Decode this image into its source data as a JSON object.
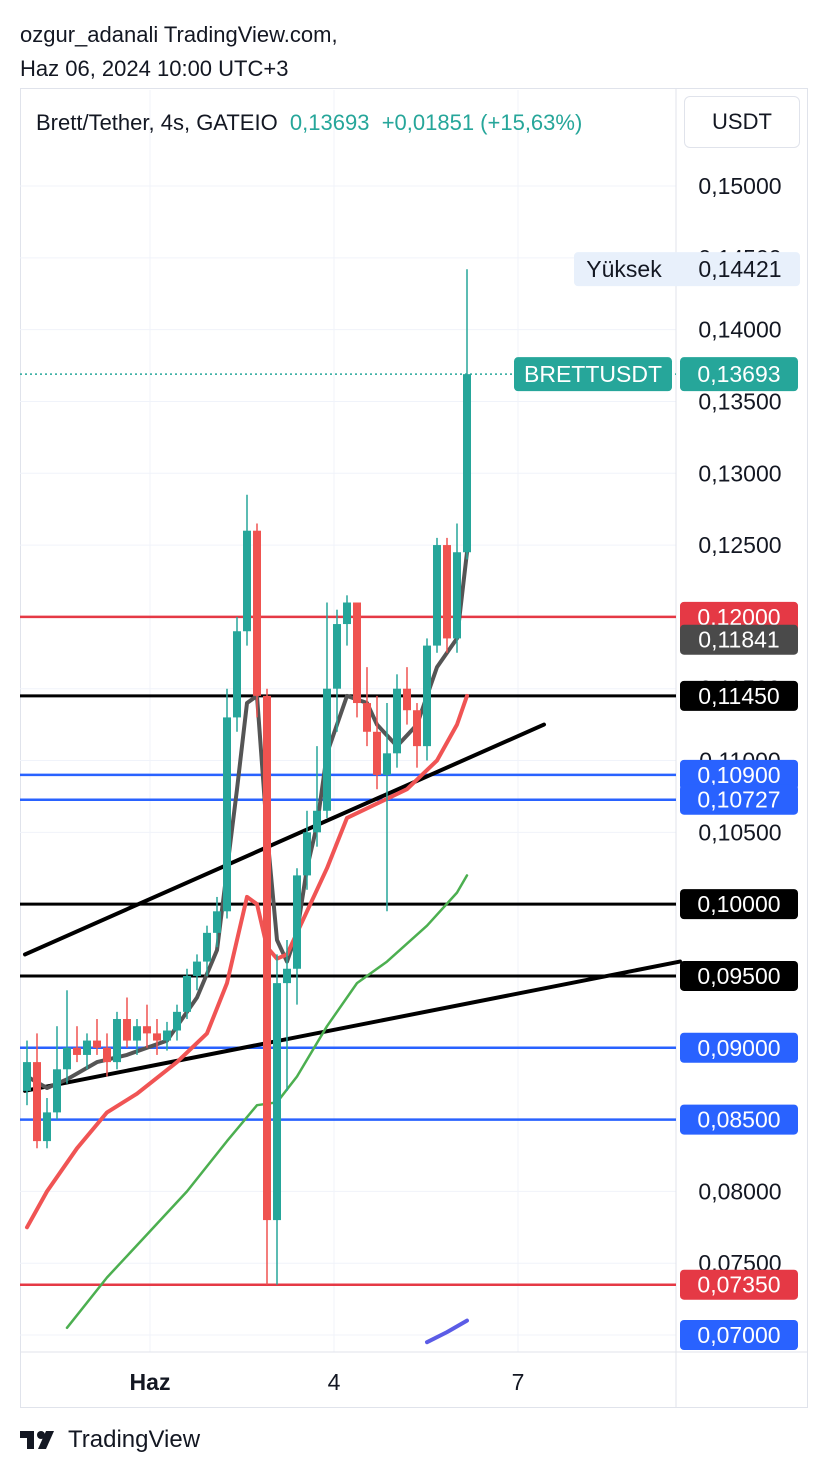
{
  "header": {
    "author": "ozgur_adanali TradingView.com,",
    "datetime": "Haz 06, 2024 10:00 UTC+3"
  },
  "symbol": {
    "name": "Brett/Tether, 4s, GATEIO",
    "price": "0,13693",
    "change": "+0,01851 (+15,63%)"
  },
  "currency": "USDT",
  "footer": {
    "brand": "TradingView"
  },
  "colors": {
    "up": "#26a69a",
    "down": "#ef5350",
    "red_line": "#e53945",
    "blue_line": "#2962ff",
    "black_line": "#000000",
    "ma_dark": "#555555",
    "ma_red": "#f05454",
    "ma_green": "#4caf50",
    "ma_purple": "#5b5ce6",
    "price_label": "#26a69a"
  },
  "chart_data": {
    "type": "candlestick",
    "symbol": "BRETTUSDT",
    "ylim": [
      0.0675,
      0.1545
    ],
    "price_axis_ticks": [
      "0,15000",
      "0,14500",
      "0,14000",
      "0,13500",
      "0,13000",
      "0,12500",
      "0,11500",
      "0,11000",
      "0,10500",
      "0,08000",
      "0,07500"
    ],
    "time_axis_ticks": [
      "Haz",
      "4",
      "7"
    ],
    "last_price_label": "0,13693",
    "high_label": {
      "text": "Yüksek",
      "value": "0,14421"
    },
    "horizontal_levels": [
      {
        "value": 0.12,
        "label": "0,12000",
        "color": "red"
      },
      {
        "value": 0.11841,
        "label": "0,11841",
        "color": "gray",
        "line": false
      },
      {
        "value": 0.1145,
        "label": "0,11450",
        "color": "black"
      },
      {
        "value": 0.109,
        "label": "0,10900",
        "color": "blue"
      },
      {
        "value": 0.10727,
        "label": "0,10727",
        "color": "blue"
      },
      {
        "value": 0.1,
        "label": "0,10000",
        "color": "black"
      },
      {
        "value": 0.095,
        "label": "0,09500",
        "color": "black"
      },
      {
        "value": 0.09,
        "label": "0,09000",
        "color": "blue"
      },
      {
        "value": 0.085,
        "label": "0,08500",
        "color": "blue"
      },
      {
        "value": 0.0735,
        "label": "0,07350",
        "color": "red"
      },
      {
        "value": 0.07,
        "label": "0,07000",
        "color": "blue",
        "line": false
      }
    ],
    "candles": [
      [
        0.087,
        0.0905,
        0.086,
        0.089
      ],
      [
        0.089,
        0.091,
        0.083,
        0.0835
      ],
      [
        0.0835,
        0.0865,
        0.083,
        0.0855
      ],
      [
        0.0855,
        0.0915,
        0.085,
        0.0885
      ],
      [
        0.0885,
        0.094,
        0.0875,
        0.09
      ],
      [
        0.09,
        0.0915,
        0.089,
        0.0895
      ],
      [
        0.0895,
        0.091,
        0.0885,
        0.0905
      ],
      [
        0.0905,
        0.092,
        0.0895,
        0.09
      ],
      [
        0.09,
        0.091,
        0.088,
        0.089
      ],
      [
        0.089,
        0.0925,
        0.0885,
        0.092
      ],
      [
        0.092,
        0.0935,
        0.09,
        0.0905
      ],
      [
        0.0905,
        0.092,
        0.0895,
        0.0915
      ],
      [
        0.0915,
        0.093,
        0.09,
        0.091
      ],
      [
        0.091,
        0.092,
        0.0895,
        0.0905
      ],
      [
        0.0905,
        0.0918,
        0.0898,
        0.0912
      ],
      [
        0.0912,
        0.093,
        0.0905,
        0.0925
      ],
      [
        0.0925,
        0.0955,
        0.092,
        0.095
      ],
      [
        0.095,
        0.0965,
        0.094,
        0.096
      ],
      [
        0.096,
        0.0985,
        0.095,
        0.098
      ],
      [
        0.098,
        0.1005,
        0.097,
        0.0995
      ],
      [
        0.0995,
        0.115,
        0.099,
        0.113
      ],
      [
        0.113,
        0.12,
        0.112,
        0.119
      ],
      [
        0.119,
        0.1285,
        0.118,
        0.126
      ],
      [
        0.126,
        0.1265,
        0.113,
        0.1145
      ],
      [
        0.1145,
        0.115,
        0.0735,
        0.078
      ],
      [
        0.078,
        0.0965,
        0.0735,
        0.0945
      ],
      [
        0.0945,
        0.0975,
        0.087,
        0.0955
      ],
      [
        0.0955,
        0.1025,
        0.093,
        0.102
      ],
      [
        0.102,
        0.1065,
        0.101,
        0.105
      ],
      [
        0.105,
        0.111,
        0.104,
        0.1065
      ],
      [
        0.1065,
        0.121,
        0.106,
        0.115
      ],
      [
        0.115,
        0.1205,
        0.112,
        0.1195
      ],
      [
        0.1195,
        0.1215,
        0.118,
        0.121
      ],
      [
        0.121,
        0.121,
        0.113,
        0.114
      ],
      [
        0.114,
        0.1165,
        0.111,
        0.112
      ],
      [
        0.112,
        0.1145,
        0.108,
        0.109
      ],
      [
        0.109,
        0.114,
        0.0995,
        0.1105
      ],
      [
        0.1105,
        0.116,
        0.1095,
        0.115
      ],
      [
        0.115,
        0.1165,
        0.1125,
        0.1135
      ],
      [
        0.1135,
        0.114,
        0.1095,
        0.111
      ],
      [
        0.111,
        0.1185,
        0.11,
        0.118
      ],
      [
        0.118,
        0.1255,
        0.1175,
        0.125
      ],
      [
        0.125,
        0.1255,
        0.1175,
        0.1185
      ],
      [
        0.1185,
        0.1265,
        0.1175,
        0.1245
      ],
      [
        0.1245,
        0.1442,
        0.124,
        0.1369
      ]
    ],
    "moving_averages": [
      {
        "color": "dark",
        "values": [
          [
            0,
            0.088
          ],
          [
            2,
            0.0872
          ],
          [
            4,
            0.0878
          ],
          [
            7,
            0.089
          ],
          [
            10,
            0.0895
          ],
          [
            14,
            0.0905
          ],
          [
            17,
            0.0935
          ],
          [
            19,
            0.0968
          ],
          [
            21,
            0.108
          ],
          [
            22,
            0.114
          ],
          [
            23,
            0.1145
          ],
          [
            24,
            0.105
          ],
          [
            25,
            0.0975
          ],
          [
            26,
            0.096
          ],
          [
            27,
            0.098
          ],
          [
            28,
            0.1025
          ],
          [
            29,
            0.1055
          ],
          [
            30,
            0.1105
          ],
          [
            32,
            0.1145
          ],
          [
            34,
            0.114
          ],
          [
            35,
            0.1125
          ],
          [
            37,
            0.111
          ],
          [
            39,
            0.1125
          ],
          [
            41,
            0.1165
          ],
          [
            43,
            0.1185
          ],
          [
            44,
            0.1245
          ]
        ]
      },
      {
        "color": "red",
        "values": [
          [
            0,
            0.0775
          ],
          [
            2,
            0.08
          ],
          [
            5,
            0.083
          ],
          [
            8,
            0.0855
          ],
          [
            11,
            0.0868
          ],
          [
            15,
            0.089
          ],
          [
            18,
            0.091
          ],
          [
            20,
            0.0945
          ],
          [
            22,
            0.1005
          ],
          [
            23,
            0.1
          ],
          [
            24,
            0.097
          ],
          [
            25,
            0.0962
          ],
          [
            26,
            0.0965
          ],
          [
            28,
            0.0995
          ],
          [
            30,
            0.1025
          ],
          [
            32,
            0.106
          ],
          [
            35,
            0.107
          ],
          [
            38,
            0.108
          ],
          [
            41,
            0.11
          ],
          [
            43,
            0.1125
          ],
          [
            44,
            0.1145
          ]
        ]
      },
      {
        "color": "green",
        "values": [
          [
            4,
            0.0705
          ],
          [
            8,
            0.074
          ],
          [
            12,
            0.077
          ],
          [
            16,
            0.08
          ],
          [
            20,
            0.0835
          ],
          [
            23,
            0.086
          ],
          [
            25,
            0.0862
          ],
          [
            27,
            0.088
          ],
          [
            30,
            0.0915
          ],
          [
            33,
            0.0945
          ],
          [
            36,
            0.096
          ],
          [
            40,
            0.0985
          ],
          [
            43,
            0.1008
          ],
          [
            44,
            0.102
          ]
        ]
      },
      {
        "color": "purple",
        "values": [
          [
            40,
            0.0695
          ],
          [
            42,
            0.0702
          ],
          [
            44,
            0.071
          ]
        ]
      }
    ],
    "trendlines": [
      {
        "from": [
          -0.2,
          0.0965
        ],
        "to": [
          51.7,
          0.1125
        ]
      },
      {
        "from": [
          -0.2,
          0.087
        ],
        "to": [
          65.3,
          0.096
        ]
      }
    ]
  }
}
